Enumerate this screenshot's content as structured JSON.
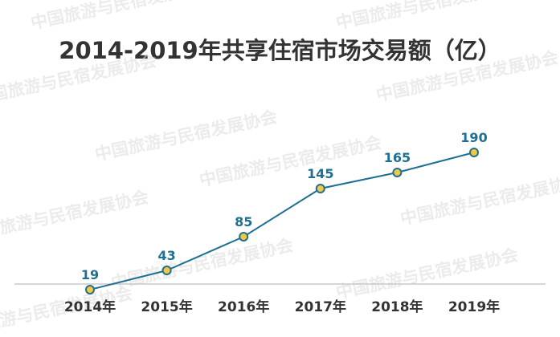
{
  "chart_data": {
    "type": "line",
    "title": "2014-2019年共享住宿市场交易额（亿）",
    "categories": [
      "2014年",
      "2015年",
      "2016年",
      "2017年",
      "2018年",
      "2019年"
    ],
    "series": [
      {
        "values": [
          19,
          43,
          85,
          145,
          165,
          190
        ]
      }
    ],
    "ylim": [
      0,
      200
    ],
    "grid": false,
    "legend": "none",
    "colors": {
      "line": "#1f6f93",
      "marker_fill": "#f2c744",
      "marker_stroke": "#1f6f93",
      "label": "#1f6f93",
      "axis": "#c8c8c8",
      "tick_label": "#333333"
    }
  },
  "watermark": "中国旅游与民宿发展协会"
}
